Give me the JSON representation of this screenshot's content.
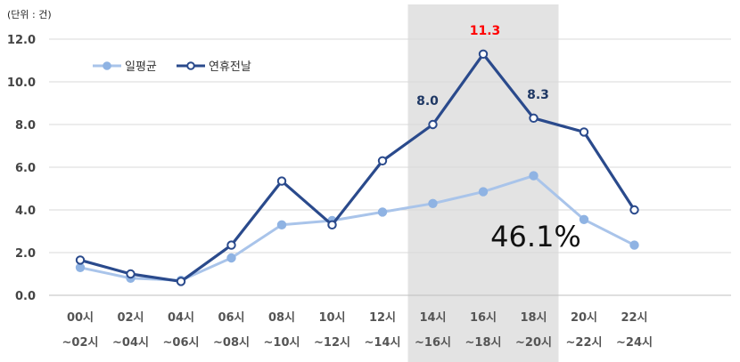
{
  "unit_label": "(단위 : 건)",
  "highlight_percent": "46.1%",
  "colors": {
    "avg_line": "#a9c4ea",
    "avg_marker": "#8fb3e3",
    "holiday_line": "#2a4a8c",
    "highlight_band": "#e3e3e3",
    "peak_label": "#ff0000",
    "label_dark": "#1f3864"
  },
  "chart_data": {
    "type": "line",
    "title": "",
    "xlabel": "",
    "ylabel": "",
    "ylim": [
      0,
      12
    ],
    "yticks": [
      "0.0",
      "2.0",
      "4.0",
      "6.0",
      "8.0",
      "10.0",
      "12.0"
    ],
    "grid": true,
    "legend_position": "top-left",
    "categories": [
      [
        "00시",
        "~02시"
      ],
      [
        "02시",
        "~04시"
      ],
      [
        "04시",
        "~06시"
      ],
      [
        "06시",
        "~08시"
      ],
      [
        "08시",
        "~10시"
      ],
      [
        "10시",
        "~12시"
      ],
      [
        "12시",
        "~14시"
      ],
      [
        "14시",
        "~16시"
      ],
      [
        "16시",
        "~18시"
      ],
      [
        "18시",
        "~20시"
      ],
      [
        "20시",
        "~22시"
      ],
      [
        "22시",
        "~24시"
      ]
    ],
    "highlight_range": [
      "14시~16시",
      "18시~20시"
    ],
    "series": [
      {
        "name": "일평균",
        "values": [
          1.3,
          0.8,
          0.7,
          1.75,
          3.3,
          3.5,
          3.9,
          4.3,
          4.85,
          5.6,
          3.55,
          2.35
        ]
      },
      {
        "name": "연휴전날",
        "values": [
          1.65,
          1.0,
          0.65,
          2.35,
          5.35,
          3.3,
          6.3,
          8.0,
          11.3,
          8.3,
          7.65,
          4.0
        ]
      }
    ],
    "data_labels": [
      {
        "series": "연휴전날",
        "index": 7,
        "text": "8.0",
        "color": "dark"
      },
      {
        "series": "연휴전날",
        "index": 8,
        "text": "11.3",
        "color": "peak"
      },
      {
        "series": "연휴전날",
        "index": 9,
        "text": "8.3",
        "color": "dark"
      }
    ]
  }
}
